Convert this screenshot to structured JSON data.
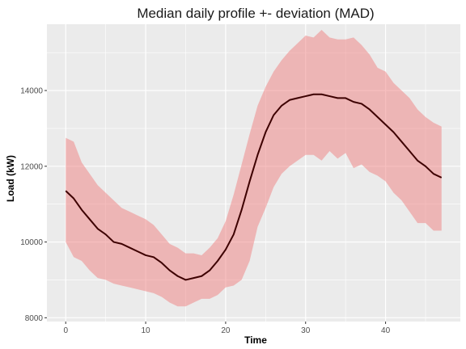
{
  "chart_data": {
    "type": "area",
    "title": "Median daily profile +- deviation (MAD)",
    "xlabel": "Time",
    "ylabel": "Load (kW)",
    "xlim": [
      -2.35,
      49.35
    ],
    "ylim": [
      7900,
      15750
    ],
    "x_ticks": [
      0,
      10,
      20,
      30,
      40
    ],
    "y_ticks": [
      8000,
      10000,
      12000,
      14000
    ],
    "x_tick_labels": [
      "0",
      "10",
      "20",
      "30",
      "40"
    ],
    "y_tick_labels": [
      "8000",
      "10000",
      "12000",
      "14000"
    ],
    "grid": true,
    "colors": {
      "panel": "#ebebeb",
      "grid": "#ffffff",
      "ribbon": "#f08080",
      "ribbon_opacity": 0.5,
      "line": "#3d0000"
    },
    "x": [
      0,
      1,
      2,
      3,
      4,
      5,
      6,
      7,
      8,
      9,
      10,
      11,
      12,
      13,
      14,
      15,
      16,
      17,
      18,
      19,
      20,
      21,
      22,
      23,
      24,
      25,
      26,
      27,
      28,
      29,
      30,
      31,
      32,
      33,
      34,
      35,
      36,
      37,
      38,
      39,
      40,
      41,
      42,
      43,
      44,
      45,
      46,
      47
    ],
    "series": [
      {
        "role": "median",
        "values": [
          11350,
          11150,
          10850,
          10600,
          10350,
          10200,
          10000,
          9950,
          9850,
          9750,
          9650,
          9600,
          9450,
          9250,
          9100,
          9000,
          9050,
          9100,
          9250,
          9500,
          9800,
          10200,
          10850,
          11600,
          12300,
          12900,
          13350,
          13600,
          13750,
          13800,
          13850,
          13900,
          13900,
          13850,
          13800,
          13800,
          13700,
          13650,
          13500,
          13300,
          13100,
          12900,
          12650,
          12400,
          12150,
          12000,
          11800,
          11700
        ]
      },
      {
        "role": "upper",
        "values": [
          12750,
          12650,
          12100,
          11800,
          11500,
          11300,
          11100,
          10900,
          10800,
          10700,
          10600,
          10450,
          10200,
          9950,
          9850,
          9700,
          9700,
          9650,
          9850,
          10100,
          10550,
          11250,
          12050,
          12850,
          13600,
          14100,
          14500,
          14800,
          15050,
          15250,
          15450,
          15400,
          15600,
          15400,
          15350,
          15350,
          15400,
          15200,
          14950,
          14600,
          14500,
          14200,
          14000,
          13800,
          13500,
          13300,
          13150,
          13050
        ]
      },
      {
        "role": "lower",
        "values": [
          10000,
          9600,
          9500,
          9250,
          9050,
          9000,
          8900,
          8850,
          8800,
          8750,
          8700,
          8650,
          8550,
          8400,
          8300,
          8300,
          8400,
          8500,
          8500,
          8600,
          8800,
          8850,
          9000,
          9500,
          10400,
          10900,
          11450,
          11800,
          12000,
          12150,
          12300,
          12300,
          12150,
          12400,
          12200,
          12350,
          11950,
          12050,
          11850,
          11750,
          11600,
          11300,
          11100,
          10800,
          10500,
          10500,
          10300,
          10300
        ]
      }
    ]
  }
}
